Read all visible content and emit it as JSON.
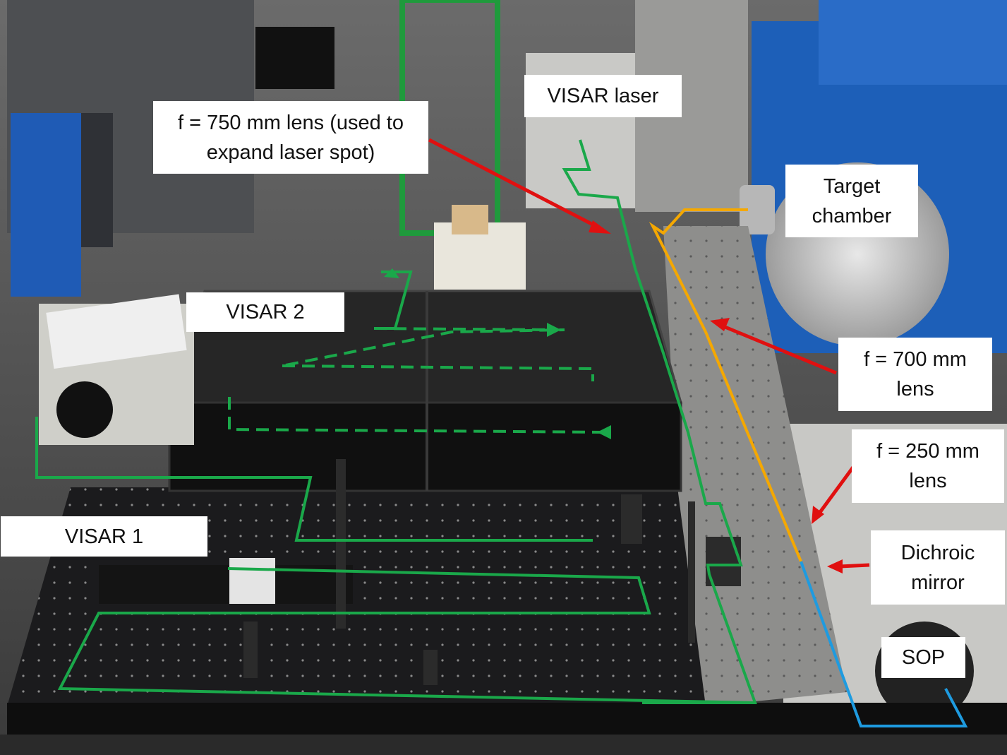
{
  "labels": {
    "visar_laser": "VISAR laser",
    "lens_750": "f = 750 mm lens (used to\nexpand laser spot)",
    "target_chamber": "Target\nchamber",
    "visar2": "VISAR 2",
    "lens_700": "f = 700 mm\nlens",
    "lens_250": "f = 250 mm\nlens",
    "visar1": "VISAR 1",
    "dichroic": "Dichroic\nmirror",
    "sop": "SOP"
  },
  "colors": {
    "beam_green": "#1aa84a",
    "beam_orange": "#f5a800",
    "beam_blue": "#1e9be0",
    "arrow_red": "#e01010",
    "chamber_blue": "#1d5fb8",
    "table_black": "#151515",
    "floor": "#2a2a2a"
  }
}
